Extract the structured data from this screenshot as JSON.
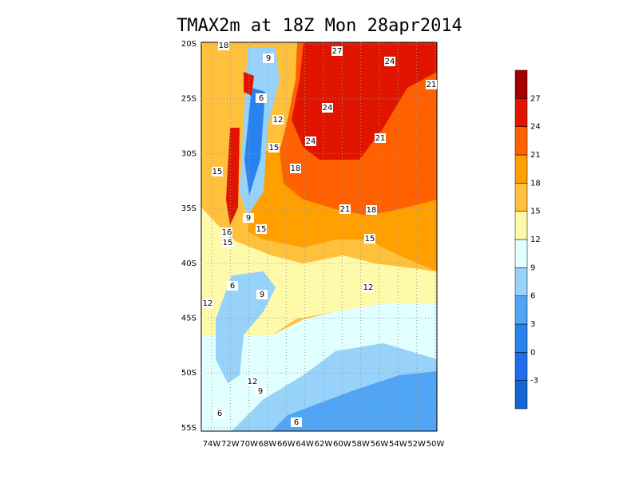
{
  "title": "TMAX2m at 18Z Mon 28apr2014",
  "lat_labels": [
    "20S",
    "25S",
    "30S",
    "35S",
    "40S",
    "45S",
    "50S",
    "55S"
  ],
  "lon_labels": [
    "74W",
    "72W",
    "70W",
    "68W",
    "66W",
    "64W",
    "62W",
    "60W",
    "58W",
    "56W",
    "54W",
    "52W",
    "50W"
  ],
  "colorbar": {
    "levels": [
      -3,
      0,
      3,
      6,
      9,
      12,
      15,
      18,
      21,
      24,
      27
    ],
    "colors": [
      "#1464d2",
      "#1e6eeb",
      "#2882f0",
      "#50a5f5",
      "#96d2fa",
      "#e1ffff",
      "#fffaaa",
      "#ffc03c",
      "#ffa000",
      "#ff6000",
      "#e11400",
      "#a50000"
    ]
  },
  "contour_labels": [
    18,
    27,
    24,
    21,
    9,
    6,
    24,
    12,
    21,
    24,
    15,
    18,
    15,
    21,
    18,
    9,
    16,
    15,
    15,
    15,
    6,
    9,
    12,
    12,
    12,
    9,
    6,
    6
  ]
}
